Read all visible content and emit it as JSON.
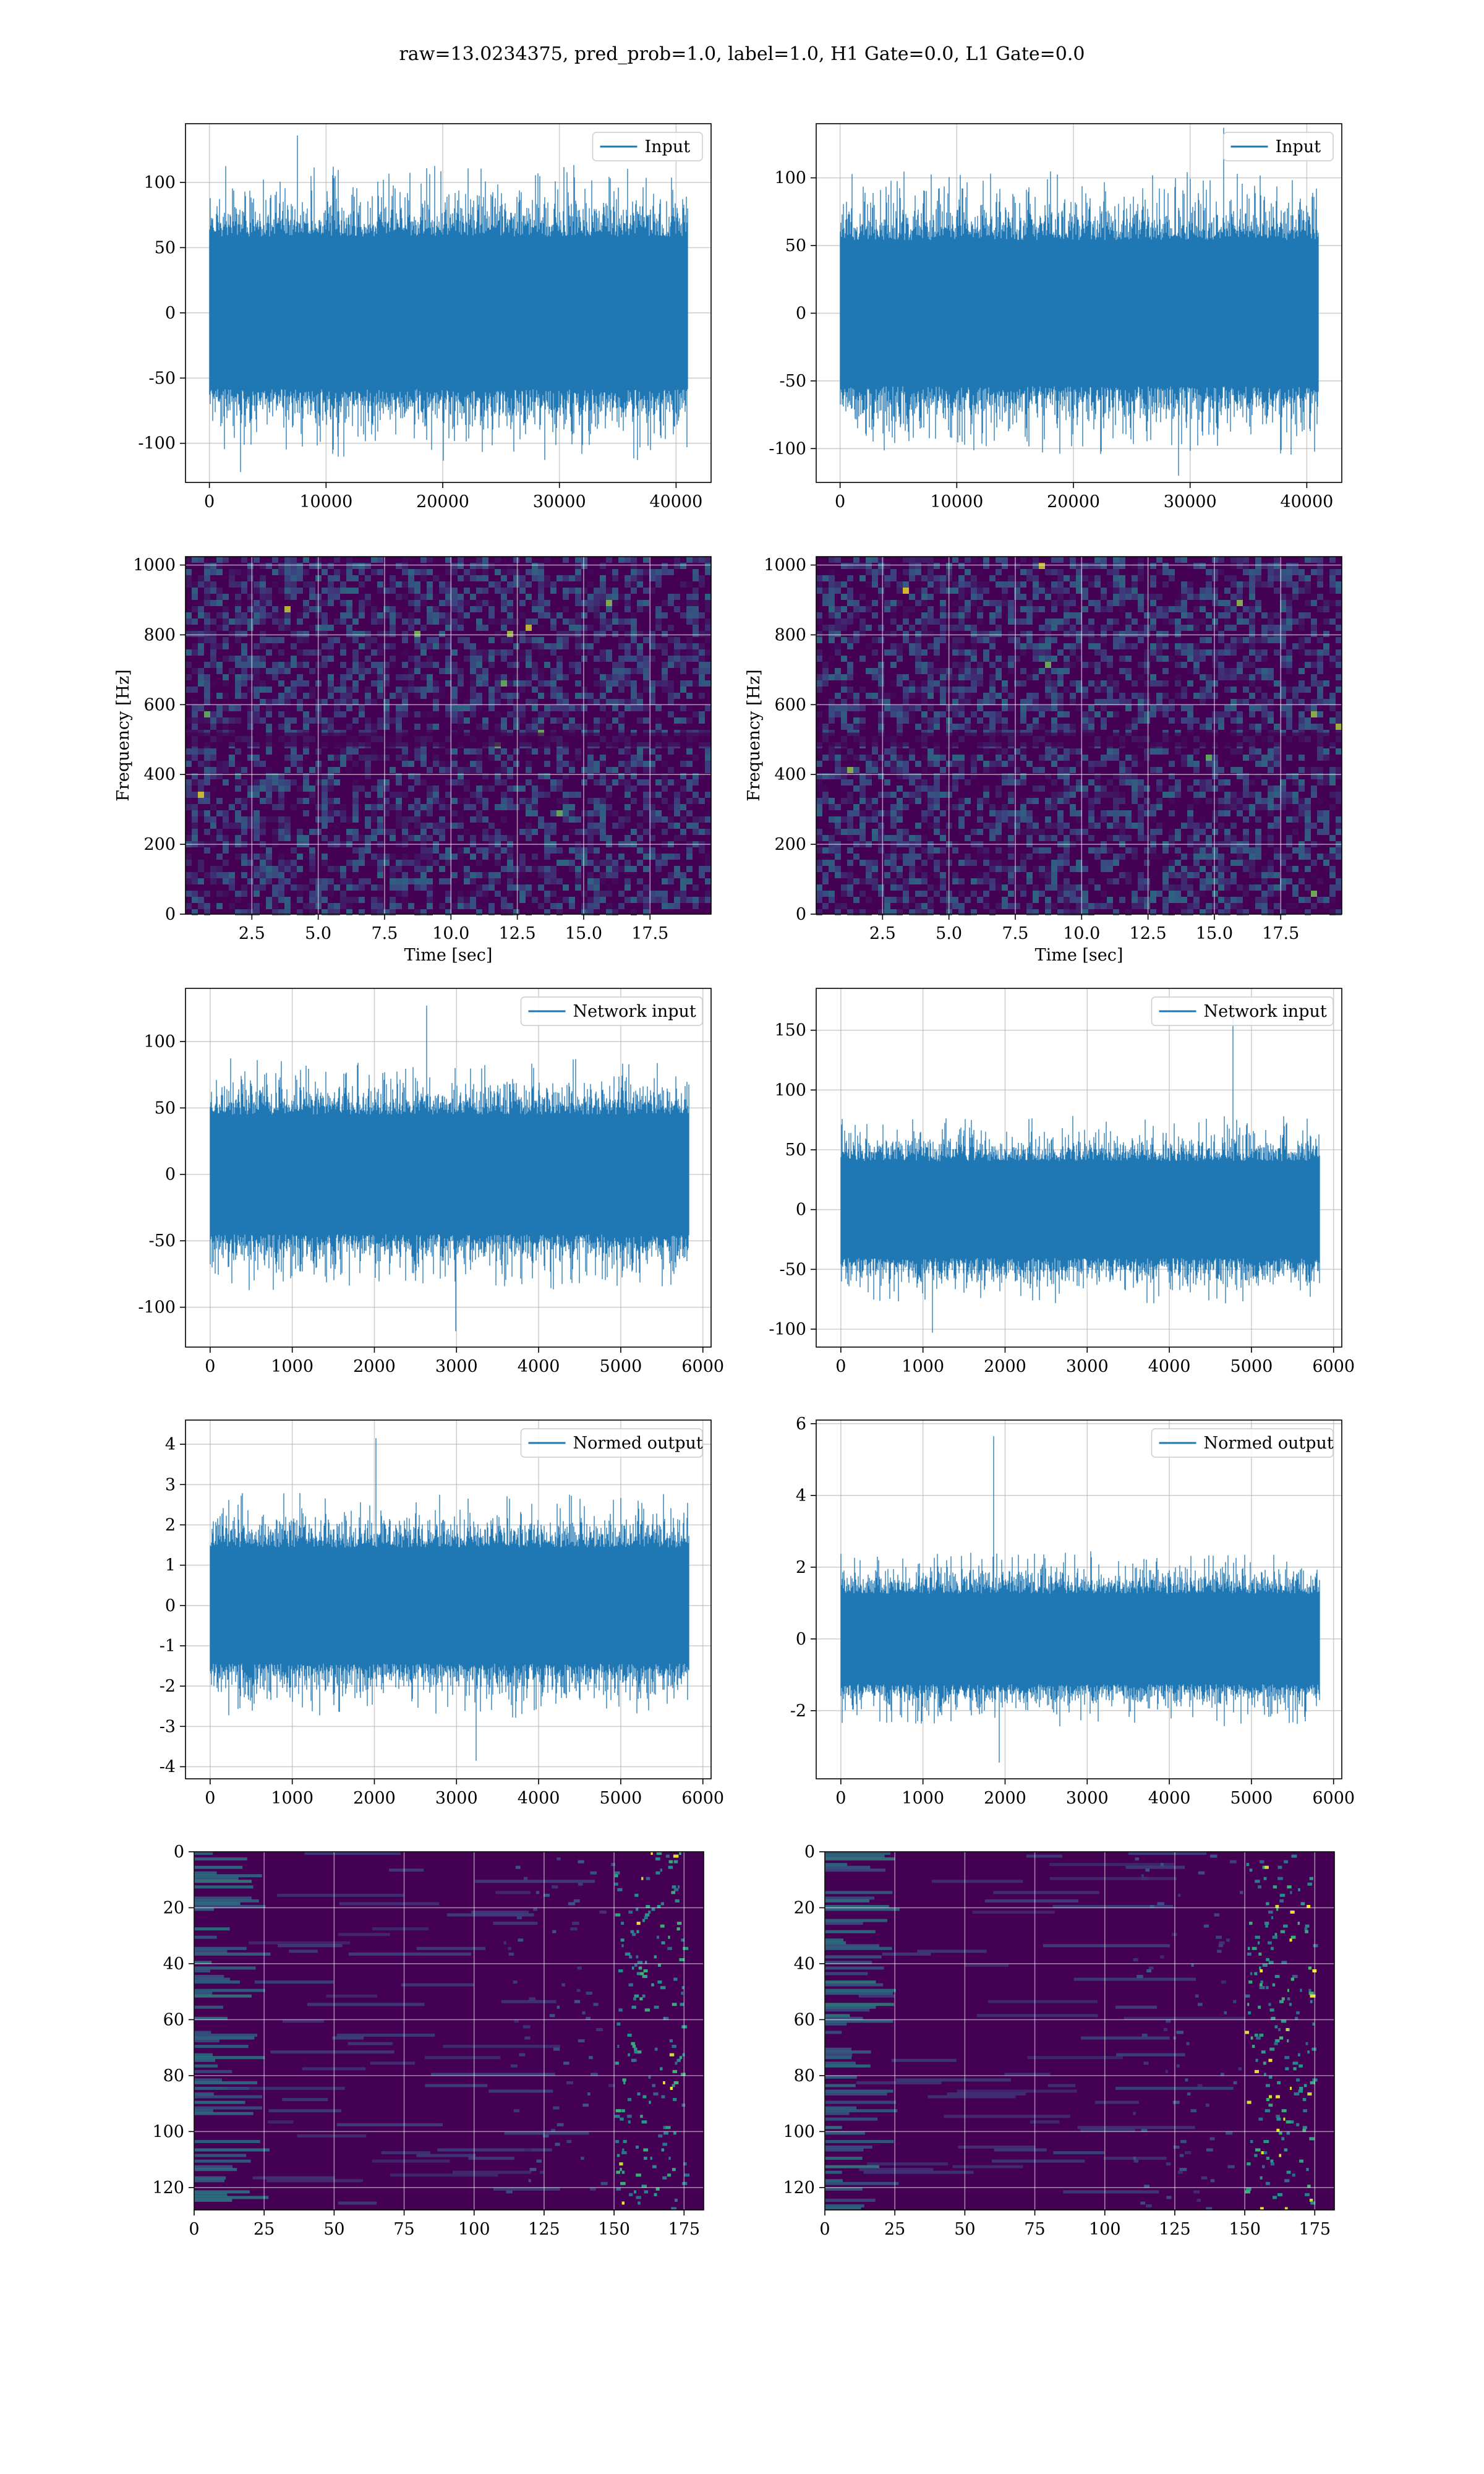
{
  "figure": {
    "suptitle": "raw=13.0234375, pred_prob=1.0, label=1.0, H1 Gate=0.0, L1 Gate=0.0"
  },
  "colors": {
    "series": "#1f77b4",
    "grid": "#b0b0b0",
    "viridis_low": "#440154",
    "viridis_mid": "#21918c",
    "viridis_high": "#fde725"
  },
  "chart_data": [
    {
      "id": "h1-input",
      "type": "line",
      "style": "dense-noise",
      "series": [
        {
          "name": "Input"
        }
      ],
      "legend": "top-right",
      "xlim": [
        -2048,
        43000
      ],
      "ylim": [
        -130,
        145
      ],
      "xticks": [
        0,
        10000,
        20000,
        30000,
        40000
      ],
      "yticks": [
        100,
        50,
        0,
        -50,
        -100
      ],
      "data_range_x": [
        0,
        40960
      ],
      "band": [
        -65,
        65
      ],
      "spike_peak": 136,
      "spike_trough": -122,
      "grid": true
    },
    {
      "id": "l1-input",
      "type": "line",
      "style": "dense-noise",
      "series": [
        {
          "name": "Input"
        }
      ],
      "legend": "top-right",
      "xlim": [
        -2048,
        43000
      ],
      "ylim": [
        -125,
        140
      ],
      "xticks": [
        0,
        10000,
        20000,
        30000,
        40000
      ],
      "yticks": [
        100,
        50,
        0,
        -50,
        -100
      ],
      "data_range_x": [
        0,
        40960
      ],
      "band": [
        -60,
        60
      ],
      "spike_peak": 137,
      "spike_trough": -120,
      "grid": true
    },
    {
      "id": "h1-spectrogram",
      "type": "heatmap",
      "xlabel": "Time [sec]",
      "ylabel": "Frequency [Hz]",
      "xlim": [
        0,
        19.8
      ],
      "ylim": [
        0,
        1024
      ],
      "xticks": [
        2.5,
        5.0,
        7.5,
        10.0,
        12.5,
        15.0,
        17.5
      ],
      "xticklabels": [
        "2.5",
        "5.0",
        "7.5",
        "10.0",
        "12.5",
        "15.0",
        "17.5"
      ],
      "yticks": [
        0,
        200,
        400,
        600,
        800,
        1000
      ],
      "colormap": "viridis",
      "grid": true
    },
    {
      "id": "l1-spectrogram",
      "type": "heatmap",
      "xlabel": "Time [sec]",
      "ylabel": "Frequency [Hz]",
      "xlim": [
        0,
        19.8
      ],
      "ylim": [
        0,
        1024
      ],
      "xticks": [
        2.5,
        5.0,
        7.5,
        10.0,
        12.5,
        15.0,
        17.5
      ],
      "xticklabels": [
        "2.5",
        "5.0",
        "7.5",
        "10.0",
        "12.5",
        "15.0",
        "17.5"
      ],
      "yticks": [
        0,
        200,
        400,
        600,
        800,
        1000
      ],
      "colormap": "viridis",
      "grid": true
    },
    {
      "id": "h1-network-input",
      "type": "line",
      "style": "dense-noise",
      "series": [
        {
          "name": "Network input"
        }
      ],
      "legend": "top-right",
      "xlim": [
        -300,
        6100
      ],
      "ylim": [
        -130,
        140
      ],
      "xticks": [
        0,
        1000,
        2000,
        3000,
        4000,
        5000,
        6000
      ],
      "yticks": [
        100,
        50,
        0,
        -50,
        -100
      ],
      "data_range_x": [
        0,
        5830
      ],
      "band": [
        -50,
        50
      ],
      "spike_peak": 127,
      "spike_trough": -118,
      "grid": true
    },
    {
      "id": "l1-network-input",
      "type": "line",
      "style": "dense-noise",
      "series": [
        {
          "name": "Network input"
        }
      ],
      "legend": "top-right",
      "xlim": [
        -300,
        6100
      ],
      "ylim": [
        -115,
        185
      ],
      "xticks": [
        0,
        1000,
        2000,
        3000,
        4000,
        5000,
        6000
      ],
      "yticks": [
        150,
        100,
        50,
        0,
        -50,
        -100
      ],
      "data_range_x": [
        0,
        5830
      ],
      "band": [
        -45,
        45
      ],
      "spike_peak": 173,
      "spike_trough": -103,
      "grid": true
    },
    {
      "id": "h1-normed-output",
      "type": "line",
      "style": "dense-noise",
      "series": [
        {
          "name": "Normed output"
        }
      ],
      "legend": "top-right",
      "xlim": [
        -300,
        6100
      ],
      "ylim": [
        -4.3,
        4.6
      ],
      "xticks": [
        0,
        1000,
        2000,
        3000,
        4000,
        5000,
        6000
      ],
      "yticks": [
        4,
        3,
        2,
        1,
        0,
        -1,
        -2,
        -3,
        -4
      ],
      "data_range_x": [
        0,
        5830
      ],
      "band": [
        -1.6,
        1.6
      ],
      "spike_peak": 4.15,
      "spike_trough": -3.85,
      "grid": true
    },
    {
      "id": "l1-normed-output",
      "type": "line",
      "style": "dense-noise",
      "series": [
        {
          "name": "Normed output"
        }
      ],
      "legend": "top-right",
      "xlim": [
        -300,
        6100
      ],
      "ylim": [
        -3.9,
        6.1
      ],
      "xticks": [
        0,
        1000,
        2000,
        3000,
        4000,
        5000,
        6000
      ],
      "yticks": [
        6,
        4,
        2,
        0,
        -2
      ],
      "data_range_x": [
        0,
        5830
      ],
      "band": [
        -1.4,
        1.4
      ],
      "spike_peak": 5.65,
      "spike_trough": -3.45,
      "grid": true
    },
    {
      "id": "h1-feature-map",
      "type": "heatmap",
      "xlim": [
        0,
        182
      ],
      "ylim": [
        128,
        0
      ],
      "xticks": [
        0,
        25,
        50,
        75,
        100,
        125,
        150,
        175
      ],
      "yticks": [
        0,
        20,
        40,
        60,
        80,
        100,
        120
      ],
      "colormap": "viridis",
      "grid": true
    },
    {
      "id": "l1-feature-map",
      "type": "heatmap",
      "xlim": [
        0,
        182
      ],
      "ylim": [
        128,
        0
      ],
      "xticks": [
        0,
        25,
        50,
        75,
        100,
        125,
        150,
        175
      ],
      "yticks": [
        0,
        20,
        40,
        60,
        80,
        100,
        120
      ],
      "colormap": "viridis",
      "grid": true
    }
  ]
}
